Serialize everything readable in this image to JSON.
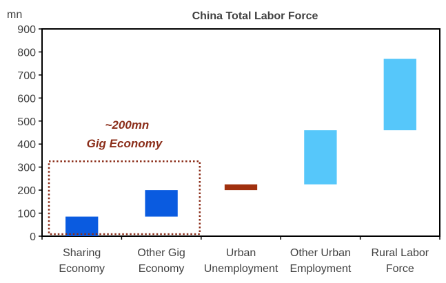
{
  "chart_data": {
    "type": "bar",
    "title": "China Total Labor Force",
    "ylabel": "mn",
    "ylim": [
      0,
      900
    ],
    "yticks": [
      0,
      100,
      200,
      300,
      400,
      500,
      600,
      700,
      800,
      900
    ],
    "grid": false,
    "categories": [
      [
        "Sharing",
        "Economy"
      ],
      [
        "Other Gig",
        "Economy"
      ],
      [
        "Urban",
        "Unemployment"
      ],
      [
        "Other Urban",
        "Employment"
      ],
      [
        "Rural Labor",
        "Force"
      ]
    ],
    "bars": [
      {
        "low": 0,
        "high": 85,
        "color": "#0A5BE0"
      },
      {
        "low": 85,
        "high": 200,
        "color": "#0A5BE0"
      },
      {
        "low": 200,
        "high": 225,
        "color": "#A0300E"
      },
      {
        "low": 225,
        "high": 460,
        "color": "#56C7FA"
      },
      {
        "low": 460,
        "high": 770,
        "color": "#56C7FA"
      }
    ],
    "annotation": {
      "lines": [
        "~200mn",
        "Gig Economy"
      ],
      "box_y_top": 325,
      "box_color": "#8B2E1A",
      "covers_categories": [
        0,
        1
      ]
    }
  }
}
